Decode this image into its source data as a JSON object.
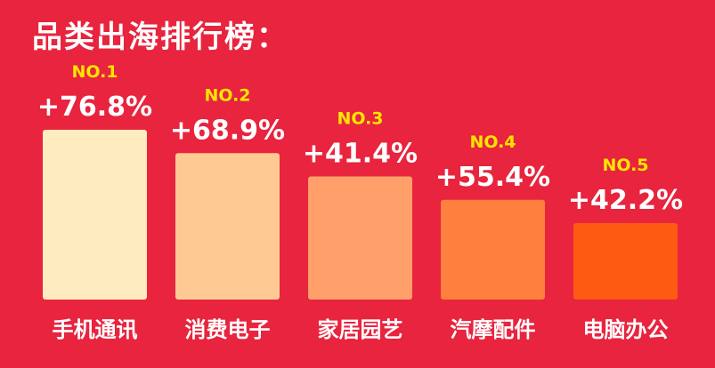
{
  "title": "品类出海排行榜：",
  "colors": {
    "background": "#E8243E",
    "rank_label": "#FFE600",
    "text": "#FFFFFF",
    "bars": [
      "#FFEBC0",
      "#FFC994",
      "#FF9F6A",
      "#FF7F3E",
      "#FF5A12"
    ]
  },
  "chart_data": {
    "type": "bar",
    "title": "品类出海排行榜：",
    "categories": [
      "手机通讯",
      "消费电子",
      "家居园艺",
      "汽摩配件",
      "电脑办公"
    ],
    "ranks": [
      "NO.1",
      "NO.2",
      "NO.3",
      "NO.4",
      "NO.5"
    ],
    "values": [
      76.8,
      68.9,
      41.4,
      55.4,
      42.2
    ],
    "value_labels": [
      "+76.8%",
      "+68.9%",
      "+41.4%",
      "+55.4%",
      "+42.2%"
    ],
    "bar_order_heights": "descending by rank",
    "grid": false,
    "legend": "none"
  }
}
